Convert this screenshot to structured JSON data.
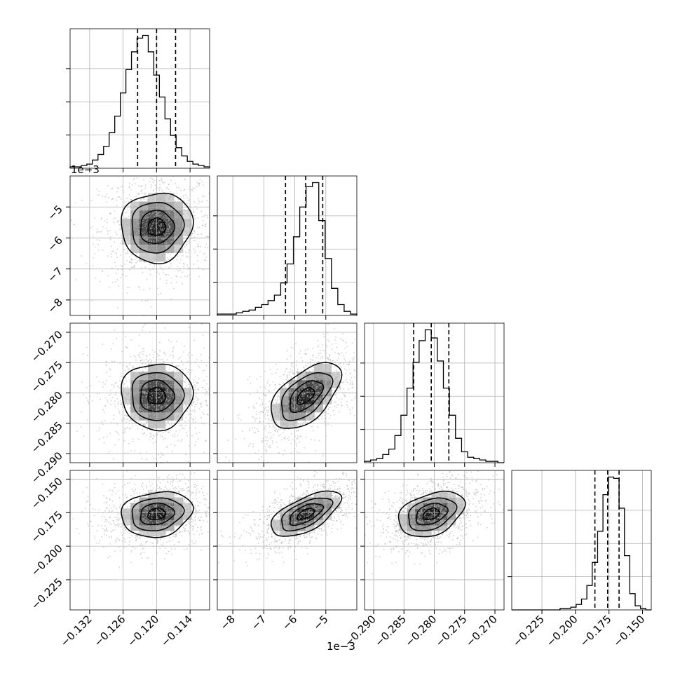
{
  "chart_data": {
    "type": "corner",
    "n_params": 4,
    "params": [
      {
        "ticks": [
          -0.132,
          -0.126,
          -0.12,
          -0.114
        ],
        "tick_labels": [
          "−0.132",
          "−0.126",
          "−0.120",
          "−0.114"
        ],
        "range": [
          -0.1355,
          -0.1105
        ],
        "offset_label": ""
      },
      {
        "ticks": [
          -8,
          -7,
          -6,
          -5
        ],
        "tick_labels": [
          "−8",
          "−7",
          "−6",
          "−5"
        ],
        "range": [
          -8.5,
          -4.0
        ],
        "offset_label": "1e−3"
      },
      {
        "ticks": [
          -0.29,
          -0.285,
          -0.28,
          -0.275,
          -0.27
        ],
        "tick_labels": [
          "−0.290",
          "−0.285",
          "−0.280",
          "−0.275",
          "−0.270"
        ],
        "range": [
          -0.2915,
          -0.2685
        ],
        "offset_label": ""
      },
      {
        "ticks": [
          -0.225,
          -0.2,
          -0.175,
          -0.15
        ],
        "tick_labels": [
          "−0.225",
          "−0.200",
          "−0.175",
          "−0.150"
        ],
        "range": [
          -0.2475,
          -0.1435
        ],
        "offset_label": ""
      }
    ],
    "quantiles": [
      [
        -0.1234,
        -0.12,
        -0.1166
      ],
      [
        -6.3,
        -5.65,
        -5.1
      ],
      [
        -0.2834,
        -0.2805,
        -0.2776
      ],
      [
        -0.1855,
        -0.176,
        -0.1675
      ]
    ],
    "histograms": [
      {
        "edges_range": [
          -0.1355,
          -0.1105
        ],
        "counts": [
          1,
          1,
          2,
          3,
          6,
          10,
          16,
          26,
          38,
          55,
          72,
          85,
          95,
          97,
          85,
          68,
          52,
          36,
          24,
          15,
          9,
          5,
          3,
          2,
          1
        ]
      },
      {
        "edges_range": [
          -8.5,
          -4.0
        ],
        "counts": [
          1,
          1,
          1,
          2,
          3,
          4,
          6,
          8,
          11,
          15,
          24,
          38,
          58,
          80,
          95,
          98,
          70,
          42,
          20,
          8,
          3,
          1
        ]
      },
      {
        "edges_range": [
          -0.2915,
          -0.2685
        ],
        "counts": [
          1,
          2,
          3,
          6,
          10,
          20,
          35,
          55,
          74,
          90,
          98,
          92,
          75,
          55,
          35,
          18,
          8,
          4,
          3,
          2,
          1,
          1,
          0
        ]
      },
      {
        "edges_range": [
          -0.2475,
          -0.1435
        ],
        "counts": [
          0,
          0,
          0,
          0,
          0,
          0,
          0,
          0,
          0,
          1,
          1,
          2,
          4,
          8,
          18,
          35,
          58,
          85,
          98,
          97,
          75,
          40,
          12,
          3,
          1,
          0
        ]
      }
    ],
    "grid": true,
    "scatter_color": "#b3b3b3",
    "line_color": "#000000"
  }
}
